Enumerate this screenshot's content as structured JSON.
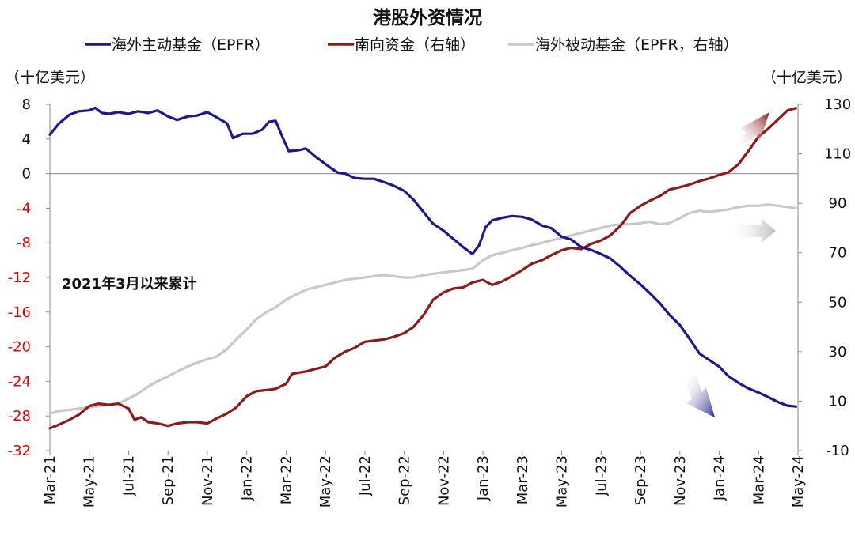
{
  "chart_data": {
    "type": "line",
    "title": "港股外资情况",
    "annotation": "2021年3月以来累计",
    "left_axis": {
      "unit": "（十亿美元）",
      "range": [
        -32,
        8
      ],
      "ticks": [
        8,
        4,
        0,
        -4,
        -8,
        -12,
        -16,
        -20,
        -24,
        -28,
        -32
      ],
      "negative_tick_color": "#e60000",
      "positive_tick_color": "#111111"
    },
    "right_axis": {
      "unit": "（十亿美元）",
      "range": [
        -10,
        130
      ],
      "ticks": [
        130,
        110,
        90,
        70,
        50,
        30,
        10,
        -10
      ]
    },
    "x_axis": {
      "range": [
        "2021-03",
        "2024-05"
      ],
      "ticks": [
        "Mar-21",
        "May-21",
        "Jul-21",
        "Sep-21",
        "Nov-21",
        "Jan-22",
        "Mar-22",
        "May-22",
        "Jul-22",
        "Sep-22",
        "Nov-22",
        "Jan-23",
        "Mar-23",
        "May-23",
        "Jul-23",
        "Sep-23",
        "Nov-23",
        "Jan-24",
        "Mar-24",
        "May-24"
      ]
    },
    "legend_position": "top",
    "series": [
      {
        "name": "海外主动基金（EPFR）",
        "axis": "left",
        "color": "#1a1a8c",
        "points": [
          [
            "2021-03-01",
            4.5
          ],
          [
            "2021-03-15",
            5.8
          ],
          [
            "2021-04-01",
            6.8
          ],
          [
            "2021-04-15",
            7.2
          ],
          [
            "2021-05-01",
            7.3
          ],
          [
            "2021-05-10",
            7.6
          ],
          [
            "2021-05-20",
            7.0
          ],
          [
            "2021-06-01",
            6.9
          ],
          [
            "2021-06-15",
            7.1
          ],
          [
            "2021-07-01",
            6.9
          ],
          [
            "2021-07-15",
            7.2
          ],
          [
            "2021-08-01",
            7.0
          ],
          [
            "2021-08-15",
            7.3
          ],
          [
            "2021-09-01",
            6.6
          ],
          [
            "2021-09-15",
            6.2
          ],
          [
            "2021-10-01",
            6.6
          ],
          [
            "2021-10-15",
            6.7
          ],
          [
            "2021-11-01",
            7.1
          ],
          [
            "2021-11-15",
            6.5
          ],
          [
            "2021-12-01",
            5.8
          ],
          [
            "2021-12-10",
            4.1
          ],
          [
            "2021-12-25",
            4.6
          ],
          [
            "2022-01-10",
            4.6
          ],
          [
            "2022-01-25",
            5.1
          ],
          [
            "2022-02-05",
            6.0
          ],
          [
            "2022-02-15",
            6.1
          ],
          [
            "2022-02-25",
            4.3
          ],
          [
            "2022-03-05",
            2.6
          ],
          [
            "2022-03-20",
            2.7
          ],
          [
            "2022-04-01",
            2.9
          ],
          [
            "2022-04-15",
            2.0
          ],
          [
            "2022-05-01",
            1.1
          ],
          [
            "2022-05-10",
            0.6
          ],
          [
            "2022-05-20",
            0.1
          ],
          [
            "2022-06-01",
            0.0
          ],
          [
            "2022-06-15",
            -0.5
          ],
          [
            "2022-07-01",
            -0.6
          ],
          [
            "2022-07-15",
            -0.6
          ],
          [
            "2022-08-01",
            -1.0
          ],
          [
            "2022-08-15",
            -1.4
          ],
          [
            "2022-09-01",
            -2.0
          ],
          [
            "2022-09-15",
            -3.0
          ],
          [
            "2022-10-01",
            -4.5
          ],
          [
            "2022-10-15",
            -5.8
          ],
          [
            "2022-11-01",
            -6.6
          ],
          [
            "2022-11-15",
            -7.5
          ],
          [
            "2022-12-01",
            -8.5
          ],
          [
            "2022-12-15",
            -9.3
          ],
          [
            "2022-12-25",
            -8.3
          ],
          [
            "2023-01-05",
            -6.2
          ],
          [
            "2023-01-15",
            -5.4
          ],
          [
            "2023-02-01",
            -5.1
          ],
          [
            "2023-02-15",
            -4.9
          ],
          [
            "2023-03-01",
            -5.0
          ],
          [
            "2023-03-15",
            -5.3
          ],
          [
            "2023-04-01",
            -6.0
          ],
          [
            "2023-04-15",
            -6.3
          ],
          [
            "2023-05-01",
            -7.3
          ],
          [
            "2023-05-15",
            -7.6
          ],
          [
            "2023-06-01",
            -8.5
          ],
          [
            "2023-06-15",
            -8.8
          ],
          [
            "2023-07-01",
            -9.3
          ],
          [
            "2023-07-15",
            -9.8
          ],
          [
            "2023-08-01",
            -10.8
          ],
          [
            "2023-08-15",
            -11.8
          ],
          [
            "2023-09-01",
            -12.8
          ],
          [
            "2023-09-15",
            -13.8
          ],
          [
            "2023-10-01",
            -15.0
          ],
          [
            "2023-10-15",
            -16.3
          ],
          [
            "2023-11-01",
            -17.5
          ],
          [
            "2023-11-15",
            -19.0
          ],
          [
            "2023-12-01",
            -20.8
          ],
          [
            "2023-12-15",
            -21.5
          ],
          [
            "2024-01-01",
            -22.3
          ],
          [
            "2024-01-15",
            -23.4
          ],
          [
            "2024-02-01",
            -24.2
          ],
          [
            "2024-02-15",
            -24.8
          ],
          [
            "2024-03-01",
            -25.3
          ],
          [
            "2024-03-15",
            -25.8
          ],
          [
            "2024-04-01",
            -26.4
          ],
          [
            "2024-04-15",
            -26.8
          ],
          [
            "2024-04-28",
            -26.9
          ]
        ]
      },
      {
        "name": "南向资金（右轴）",
        "axis": "right",
        "color": "#8b1a1a",
        "points": [
          [
            "2021-03-01",
            -1.0
          ],
          [
            "2021-03-15",
            0.5
          ],
          [
            "2021-04-01",
            2.5
          ],
          [
            "2021-04-15",
            4.5
          ],
          [
            "2021-05-01",
            8.0
          ],
          [
            "2021-05-15",
            9.0
          ],
          [
            "2021-06-01",
            8.5
          ],
          [
            "2021-06-15",
            9.0
          ],
          [
            "2021-07-01",
            7.0
          ],
          [
            "2021-07-10",
            2.5
          ],
          [
            "2021-07-20",
            3.5
          ],
          [
            "2021-08-01",
            1.5
          ],
          [
            "2021-08-15",
            1.0
          ],
          [
            "2021-09-01",
            0.0
          ],
          [
            "2021-09-15",
            1.0
          ],
          [
            "2021-10-01",
            1.5
          ],
          [
            "2021-10-15",
            1.5
          ],
          [
            "2021-11-01",
            1.0
          ],
          [
            "2021-11-15",
            3.0
          ],
          [
            "2021-12-01",
            5.0
          ],
          [
            "2021-12-15",
            7.5
          ],
          [
            "2022-01-01",
            12.0
          ],
          [
            "2022-01-15",
            14.0
          ],
          [
            "2022-02-01",
            14.5
          ],
          [
            "2022-02-15",
            15.0
          ],
          [
            "2022-03-01",
            17.0
          ],
          [
            "2022-03-10",
            21.0
          ],
          [
            "2022-03-20",
            21.5
          ],
          [
            "2022-04-01",
            22.0
          ],
          [
            "2022-04-15",
            23.0
          ],
          [
            "2022-05-01",
            24.0
          ],
          [
            "2022-05-15",
            27.5
          ],
          [
            "2022-06-01",
            30.0
          ],
          [
            "2022-06-15",
            31.5
          ],
          [
            "2022-07-01",
            34.0
          ],
          [
            "2022-07-15",
            34.5
          ],
          [
            "2022-08-01",
            35.0
          ],
          [
            "2022-08-15",
            36.0
          ],
          [
            "2022-09-01",
            37.5
          ],
          [
            "2022-09-15",
            40.0
          ],
          [
            "2022-10-01",
            45.0
          ],
          [
            "2022-10-15",
            51.0
          ],
          [
            "2022-11-01",
            54.0
          ],
          [
            "2022-11-15",
            55.5
          ],
          [
            "2022-12-01",
            56.0
          ],
          [
            "2022-12-15",
            58.0
          ],
          [
            "2023-01-01",
            59.0
          ],
          [
            "2023-01-15",
            57.0
          ],
          [
            "2023-02-01",
            58.5
          ],
          [
            "2023-02-15",
            60.5
          ],
          [
            "2023-03-01",
            63.0
          ],
          [
            "2023-03-15",
            65.5
          ],
          [
            "2023-04-01",
            67.0
          ],
          [
            "2023-04-15",
            69.0
          ],
          [
            "2023-05-01",
            71.0
          ],
          [
            "2023-05-15",
            72.0
          ],
          [
            "2023-06-01",
            71.5
          ],
          [
            "2023-06-15",
            73.5
          ],
          [
            "2023-07-01",
            75.0
          ],
          [
            "2023-07-15",
            77.0
          ],
          [
            "2023-08-01",
            81.0
          ],
          [
            "2023-08-15",
            86.0
          ],
          [
            "2023-09-01",
            89.0
          ],
          [
            "2023-09-15",
            91.0
          ],
          [
            "2023-10-01",
            93.0
          ],
          [
            "2023-10-15",
            95.5
          ],
          [
            "2023-11-01",
            96.5
          ],
          [
            "2023-11-15",
            97.5
          ],
          [
            "2023-12-01",
            99.0
          ],
          [
            "2023-12-15",
            100.0
          ],
          [
            "2024-01-01",
            101.5
          ],
          [
            "2024-01-15",
            102.5
          ],
          [
            "2024-02-01",
            106.0
          ],
          [
            "2024-02-15",
            111.0
          ],
          [
            "2024-03-01",
            117.0
          ],
          [
            "2024-03-15",
            120.0
          ],
          [
            "2024-04-01",
            124.0
          ],
          [
            "2024-04-15",
            127.5
          ],
          [
            "2024-04-28",
            128.5
          ]
        ]
      },
      {
        "name": "海外被动基金（EPFR，右轴）",
        "axis": "right",
        "color": "#c8c8c8",
        "points": [
          [
            "2021-03-01",
            5.0
          ],
          [
            "2021-03-15",
            6.0
          ],
          [
            "2021-04-01",
            6.5
          ],
          [
            "2021-04-15",
            7.0
          ],
          [
            "2021-05-01",
            7.5
          ],
          [
            "2021-05-15",
            8.0
          ],
          [
            "2021-06-01",
            8.5
          ],
          [
            "2021-06-15",
            9.0
          ],
          [
            "2021-07-01",
            11.0
          ],
          [
            "2021-07-15",
            13.0
          ],
          [
            "2021-08-01",
            16.0
          ],
          [
            "2021-08-15",
            18.0
          ],
          [
            "2021-09-01",
            20.0
          ],
          [
            "2021-09-15",
            22.0
          ],
          [
            "2021-10-01",
            24.0
          ],
          [
            "2021-10-15",
            25.5
          ],
          [
            "2021-11-01",
            27.0
          ],
          [
            "2021-11-15",
            28.0
          ],
          [
            "2021-12-01",
            31.0
          ],
          [
            "2021-12-15",
            35.0
          ],
          [
            "2022-01-01",
            39.0
          ],
          [
            "2022-01-15",
            43.0
          ],
          [
            "2022-02-01",
            46.0
          ],
          [
            "2022-02-15",
            48.0
          ],
          [
            "2022-03-01",
            51.0
          ],
          [
            "2022-03-15",
            53.0
          ],
          [
            "2022-04-01",
            55.0
          ],
          [
            "2022-04-15",
            56.0
          ],
          [
            "2022-05-01",
            57.0
          ],
          [
            "2022-05-15",
            58.0
          ],
          [
            "2022-06-01",
            59.0
          ],
          [
            "2022-06-15",
            59.5
          ],
          [
            "2022-07-01",
            60.0
          ],
          [
            "2022-07-15",
            60.5
          ],
          [
            "2022-08-01",
            61.0
          ],
          [
            "2022-08-15",
            60.5
          ],
          [
            "2022-09-01",
            60.0
          ],
          [
            "2022-09-15",
            60.0
          ],
          [
            "2022-10-01",
            61.0
          ],
          [
            "2022-10-15",
            61.5
          ],
          [
            "2022-11-01",
            62.0
          ],
          [
            "2022-11-15",
            62.5
          ],
          [
            "2022-12-01",
            63.0
          ],
          [
            "2022-12-15",
            63.5
          ],
          [
            "2023-01-01",
            67.0
          ],
          [
            "2023-01-15",
            69.0
          ],
          [
            "2023-02-01",
            70.0
          ],
          [
            "2023-02-15",
            71.0
          ],
          [
            "2023-03-01",
            72.0
          ],
          [
            "2023-03-15",
            73.0
          ],
          [
            "2023-04-01",
            74.0
          ],
          [
            "2023-04-15",
            75.0
          ],
          [
            "2023-05-01",
            76.0
          ],
          [
            "2023-05-15",
            77.0
          ],
          [
            "2023-06-01",
            78.0
          ],
          [
            "2023-06-15",
            79.0
          ],
          [
            "2023-07-01",
            80.0
          ],
          [
            "2023-07-15",
            81.0
          ],
          [
            "2023-08-01",
            81.5
          ],
          [
            "2023-08-15",
            81.5
          ],
          [
            "2023-09-01",
            82.0
          ],
          [
            "2023-09-15",
            82.5
          ],
          [
            "2023-10-01",
            81.5
          ],
          [
            "2023-10-15",
            82.0
          ],
          [
            "2023-11-01",
            84.0
          ],
          [
            "2023-11-15",
            86.0
          ],
          [
            "2023-12-01",
            87.0
          ],
          [
            "2023-12-15",
            86.5
          ],
          [
            "2024-01-01",
            87.0
          ],
          [
            "2024-01-15",
            87.5
          ],
          [
            "2024-02-01",
            88.5
          ],
          [
            "2024-02-15",
            89.0
          ],
          [
            "2024-03-01",
            89.0
          ],
          [
            "2024-03-15",
            89.5
          ],
          [
            "2024-04-01",
            89.0
          ],
          [
            "2024-04-15",
            88.5
          ],
          [
            "2024-04-28",
            88.0
          ]
        ]
      }
    ]
  }
}
